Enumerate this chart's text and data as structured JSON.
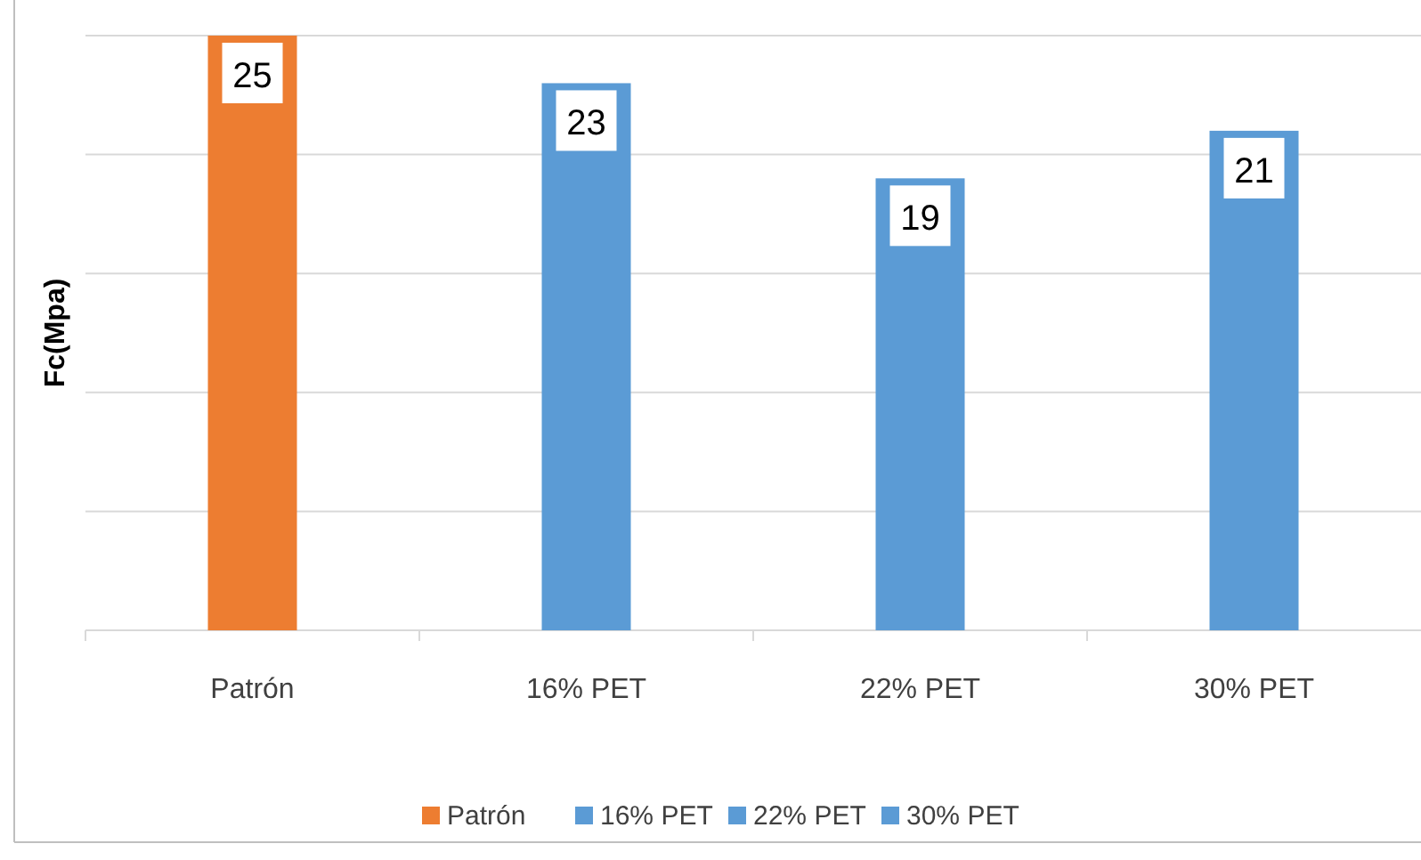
{
  "chart_data": {
    "type": "bar",
    "ylabel": "Fc(Mpa)",
    "categories": [
      "Patrón",
      "16% PET",
      "22% PET",
      "30% PET"
    ],
    "series": [
      {
        "name": "Patrón",
        "color": "#ed7d31",
        "values": [
          25,
          null,
          null,
          null
        ]
      },
      {
        "name": "16% PET",
        "color": "#5b9bd5",
        "values": [
          null,
          23,
          null,
          null
        ]
      },
      {
        "name": "22% PET",
        "color": "#5b9bd5",
        "values": [
          null,
          null,
          19,
          null
        ]
      },
      {
        "name": "30% PET",
        "color": "#5b9bd5",
        "values": [
          null,
          null,
          null,
          21
        ]
      }
    ],
    "ylim": [
      0,
      25
    ],
    "yticks": [
      {
        "value": 0,
        "label": null
      },
      {
        "value": 5,
        "label": null
      },
      {
        "value": 10,
        "label": null
      },
      {
        "value": 15,
        "label": null
      },
      {
        "value": 20,
        "label": null
      },
      {
        "value": 25,
        "label": null
      }
    ],
    "grid": "y",
    "data_labels": true,
    "legend": "bottom",
    "tick_labels": "x"
  }
}
